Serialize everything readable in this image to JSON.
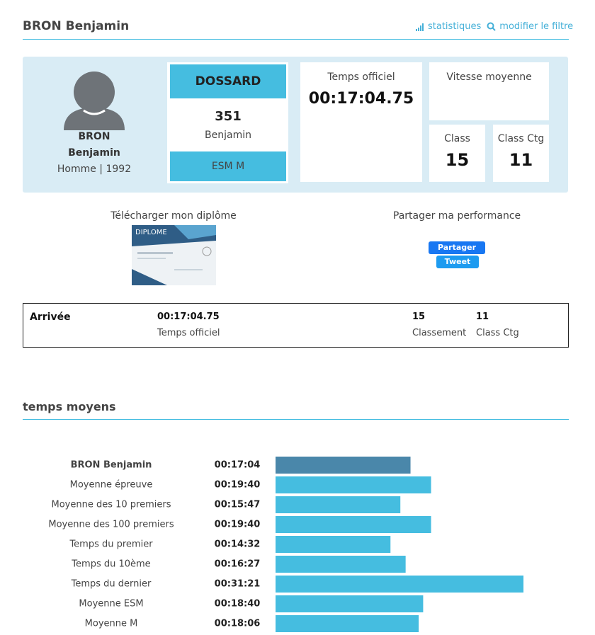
{
  "header": {
    "title": "BRON Benjamin",
    "links": [
      "statistiques",
      "modifier le filtre"
    ]
  },
  "profile": {
    "last_name": "BRON",
    "first_name": "Benjamin",
    "info": "Homme | 1992"
  },
  "dossard": {
    "label": "DOSSARD",
    "number": 351,
    "name": "Benjamin",
    "category": "ESM M"
  },
  "official_time": {
    "label": "Temps officiel",
    "value": "00:17:04.75"
  },
  "speed": {
    "label": "Vitesse moyenne"
  },
  "class": {
    "label": "Class",
    "value": 15
  },
  "class_ctg": {
    "label": "Class Ctg",
    "value": 11
  },
  "diploma": {
    "label": "Télécharger mon diplôme",
    "image_title": "DIPLOME"
  },
  "share": {
    "label": "Partager ma performance",
    "buttons": [
      "Partager",
      "Tweet"
    ]
  },
  "result": {
    "label": "Arrivée",
    "time": "00:17:04.75",
    "time_label": "Temps officiel",
    "rank": 15,
    "rank_label": "Classement",
    "ctg": 11,
    "ctg_label": "Class Ctg"
  },
  "section_title": "temps moyens",
  "chart_data": {
    "type": "bar",
    "orientation": "horizontal",
    "categories": [
      "BRON Benjamin",
      "Moyenne épreuve",
      "Moyenne des 10 premiers",
      "Moyenne des 100 premiers",
      "Temps du premier",
      "Temps du 10ème",
      "Temps du dernier",
      "Moyenne ESM",
      "Moyenne M"
    ],
    "values": [
      1024,
      1180,
      947,
      1180,
      872,
      987,
      1881,
      1120,
      1086
    ],
    "value_labels": [
      "00:17:04",
      "00:19:40",
      "00:15:47",
      "00:19:40",
      "00:14:32",
      "00:16:27",
      "00:31:21",
      "00:18:40",
      "00:18:06"
    ],
    "colors": [
      "#4a87aa",
      "#45bde0",
      "#45bde0",
      "#45bde0",
      "#45bde0",
      "#45bde0",
      "#45bde0",
      "#45bde0",
      "#45bde0"
    ]
  }
}
